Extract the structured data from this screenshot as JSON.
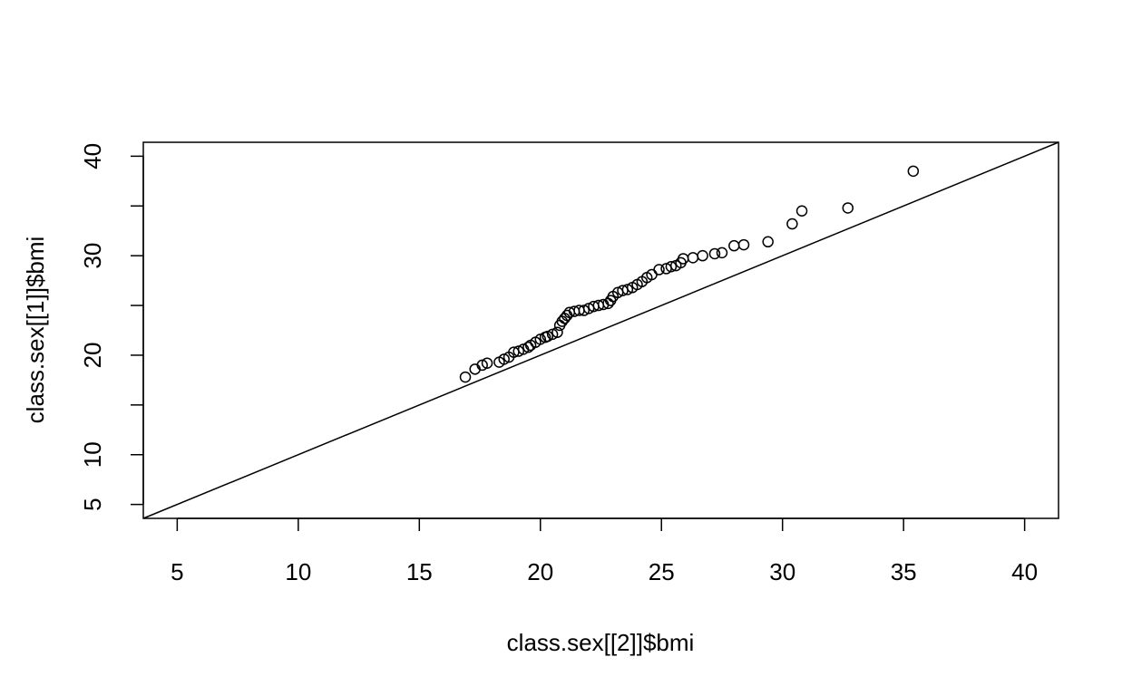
{
  "chart_data": {
    "type": "scatter",
    "title": "",
    "xlabel": "class.sex[[2]]$bmi",
    "ylabel": "class.sex[[1]]$bmi",
    "xlim": [
      3.6,
      41.4
    ],
    "ylim": [
      3.6,
      41.4
    ],
    "x_ticks": [
      5,
      10,
      15,
      20,
      25,
      30,
      35,
      40
    ],
    "y_ticks": [
      5,
      10,
      20,
      30,
      40
    ],
    "y_minor_ticks": [
      15,
      25,
      35
    ],
    "reference_line": {
      "intercept": 0,
      "slope": 1
    },
    "points": [
      {
        "x": 16.9,
        "y": 17.8
      },
      {
        "x": 17.3,
        "y": 18.6
      },
      {
        "x": 17.6,
        "y": 19.0
      },
      {
        "x": 17.8,
        "y": 19.2
      },
      {
        "x": 18.3,
        "y": 19.3
      },
      {
        "x": 18.5,
        "y": 19.6
      },
      {
        "x": 18.7,
        "y": 19.8
      },
      {
        "x": 18.9,
        "y": 20.3
      },
      {
        "x": 19.1,
        "y": 20.4
      },
      {
        "x": 19.3,
        "y": 20.6
      },
      {
        "x": 19.5,
        "y": 20.8
      },
      {
        "x": 19.6,
        "y": 21.0
      },
      {
        "x": 19.8,
        "y": 21.3
      },
      {
        "x": 20.0,
        "y": 21.6
      },
      {
        "x": 20.2,
        "y": 21.8
      },
      {
        "x": 20.3,
        "y": 21.9
      },
      {
        "x": 20.5,
        "y": 22.1
      },
      {
        "x": 20.7,
        "y": 22.3
      },
      {
        "x": 20.8,
        "y": 23.0
      },
      {
        "x": 20.9,
        "y": 23.4
      },
      {
        "x": 21.0,
        "y": 23.7
      },
      {
        "x": 21.1,
        "y": 24.0
      },
      {
        "x": 21.2,
        "y": 24.3
      },
      {
        "x": 21.4,
        "y": 24.4
      },
      {
        "x": 21.6,
        "y": 24.5
      },
      {
        "x": 21.8,
        "y": 24.5
      },
      {
        "x": 22.0,
        "y": 24.7
      },
      {
        "x": 22.2,
        "y": 24.9
      },
      {
        "x": 22.4,
        "y": 25.0
      },
      {
        "x": 22.6,
        "y": 25.1
      },
      {
        "x": 22.8,
        "y": 25.2
      },
      {
        "x": 22.9,
        "y": 25.5
      },
      {
        "x": 23.0,
        "y": 25.9
      },
      {
        "x": 23.2,
        "y": 26.3
      },
      {
        "x": 23.4,
        "y": 26.5
      },
      {
        "x": 23.6,
        "y": 26.6
      },
      {
        "x": 23.8,
        "y": 26.8
      },
      {
        "x": 24.0,
        "y": 27.1
      },
      {
        "x": 24.2,
        "y": 27.4
      },
      {
        "x": 24.4,
        "y": 27.8
      },
      {
        "x": 24.6,
        "y": 28.1
      },
      {
        "x": 24.9,
        "y": 28.6
      },
      {
        "x": 25.2,
        "y": 28.7
      },
      {
        "x": 25.4,
        "y": 28.9
      },
      {
        "x": 25.6,
        "y": 29.0
      },
      {
        "x": 25.8,
        "y": 29.3
      },
      {
        "x": 25.9,
        "y": 29.7
      },
      {
        "x": 26.3,
        "y": 29.8
      },
      {
        "x": 26.7,
        "y": 30.0
      },
      {
        "x": 27.2,
        "y": 30.2
      },
      {
        "x": 27.5,
        "y": 30.3
      },
      {
        "x": 28.0,
        "y": 31.0
      },
      {
        "x": 28.4,
        "y": 31.1
      },
      {
        "x": 29.4,
        "y": 31.4
      },
      {
        "x": 30.4,
        "y": 33.2
      },
      {
        "x": 30.8,
        "y": 34.5
      },
      {
        "x": 32.7,
        "y": 34.8
      },
      {
        "x": 35.4,
        "y": 38.5
      }
    ]
  }
}
